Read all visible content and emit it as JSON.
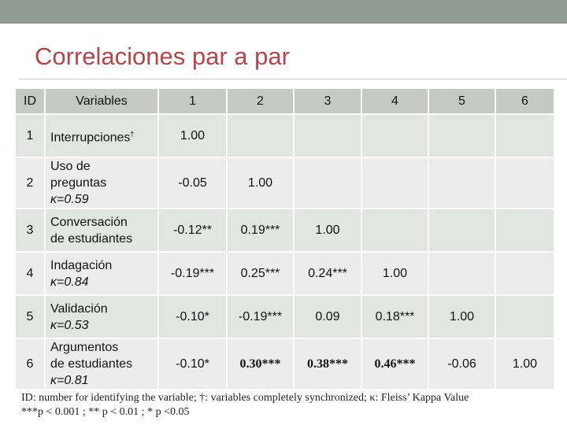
{
  "title": "Correlaciones par a par",
  "headers": [
    "ID",
    "Variables",
    "1",
    "2",
    "3",
    "4",
    "5",
    "6"
  ],
  "rows": [
    {
      "id": "1",
      "variable": [
        "Interrupciones"
      ],
      "dagger": "†",
      "values": [
        "1.00",
        "",
        "",
        "",
        "",
        ""
      ]
    },
    {
      "id": "2",
      "variable": [
        "Uso de",
        "preguntas"
      ],
      "kappa": "κ=0.59",
      "values": [
        "-0.05",
        "1.00",
        "",
        "",
        "",
        ""
      ]
    },
    {
      "id": "3",
      "variable": [
        "Conversación",
        "de estudiantes"
      ],
      "values": [
        "-0.12**",
        "0.19***",
        "1.00",
        "",
        "",
        ""
      ]
    },
    {
      "id": "4",
      "variable": [
        "Indagación"
      ],
      "kappa": "κ=0.84",
      "values": [
        "-0.19***",
        "0.25***",
        "0.24***",
        "1.00",
        "",
        ""
      ]
    },
    {
      "id": "5",
      "variable": [
        "Validación"
      ],
      "kappa": "κ=0.53",
      "values": [
        "-0.10*",
        "-0.19***",
        "0.09",
        "0.18***",
        "1.00",
        ""
      ]
    },
    {
      "id": "6",
      "variable": [
        "Argumentos",
        "de estudiantes"
      ],
      "kappa": "κ=0.81",
      "values": [
        "-0.10*",
        "0.30***",
        "0.38***",
        "0.46***",
        "-0.06",
        "1.00"
      ]
    }
  ],
  "notes": {
    "line1": "ID: number for identifying the variable; †: variables completely synchronized; κ: Fleiss’ Kappa Value",
    "line2": "***p < 0.001 ; ** p < 0.01 ; * p <0.05"
  },
  "colors": {
    "top_bar": "#8e9a92",
    "title": "#b5454a",
    "header_row": "#c6cac7",
    "row_odd": "#e3e5e3",
    "row_even": "#ececec"
  }
}
